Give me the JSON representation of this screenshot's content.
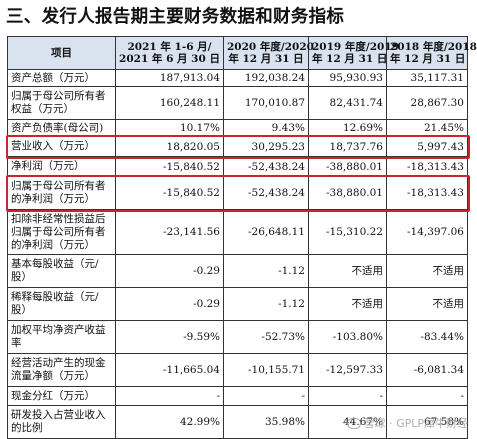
{
  "heading": "三、发行人报告期主要财务数据和财务指标",
  "table": {
    "header": {
      "item": "项目",
      "c1_line1": "2021 年 1-6 月/",
      "c1_line2": "2021 年 6 月 30 日",
      "c2_line1": "2020 年度/2020",
      "c2_line2": "年 12 月 31 日",
      "c3_line1": "2019 年度/2019",
      "c3_line2": "年 12 月 31 日",
      "c4_line1": "2018 年度/2018",
      "c4_line2": "年 12 月 31 日"
    },
    "rows": [
      {
        "label": "资产总额（万元）",
        "v1": "187,913.04",
        "v2": "192,038.24",
        "v3": "95,930.93",
        "v4": "35,117.31"
      },
      {
        "label": "归属于母公司所有者权益（万元）",
        "v1": "160,248.11",
        "v2": "170,010.87",
        "v3": "82,431.74",
        "v4": "28,867.30"
      },
      {
        "label": "资产负债率(母公司)",
        "v1": "10.17%",
        "v2": "9.43%",
        "v3": "12.69%",
        "v4": "21.45%"
      },
      {
        "label": "营业收入（万元）",
        "v1": "18,820.05",
        "v2": "30,295.23",
        "v3": "18,737.76",
        "v4": "5,997.43"
      },
      {
        "label": "净利润（万元）",
        "v1": "-15,840.52",
        "v2": "-52,438.24",
        "v3": "-38,880.01",
        "v4": "-18,313.43"
      },
      {
        "label": "归属于母公司所有者的净利润（万元）",
        "v1": "-15,840.52",
        "v2": "-52,438.24",
        "v3": "-38,880.01",
        "v4": "-18,313.43"
      },
      {
        "label": "扣除非经常性损益后归属于母公司所有者的净利润（万元）",
        "v1": "-23,141.56",
        "v2": "-26,648.11",
        "v3": "-15,310.22",
        "v4": "-14,397.06"
      },
      {
        "label": "基本每股收益（元/股）",
        "v1": "-0.29",
        "v2": "-1.12",
        "v3": "不适用",
        "v4": "不适用"
      },
      {
        "label": "稀释每股收益（元/股）",
        "v1": "-0.29",
        "v2": "-1.12",
        "v3": "不适用",
        "v4": "不适用"
      },
      {
        "label": "加权平均净资产收益率",
        "v1": "-9.59%",
        "v2": "-52.73%",
        "v3": "-103.80%",
        "v4": "-83.44%"
      },
      {
        "label": "经营活动产生的现金流量净额（万元）",
        "v1": "-11,665.04",
        "v2": "-10,155.71",
        "v3": "-12,597.33",
        "v4": "-6,081.34"
      },
      {
        "label": "现金分红（万元）",
        "v1": "-",
        "v2": "-",
        "v3": "-",
        "v4": "-"
      },
      {
        "label": "研发投入占营业收入的比例",
        "v1": "42.99%",
        "v2": "35.98%",
        "v3": "44.67%",
        "v4": "67.58%"
      }
    ]
  },
  "highlight_color": "#c8262c",
  "watermark": "雪球 · GPLP犀牛财经"
}
